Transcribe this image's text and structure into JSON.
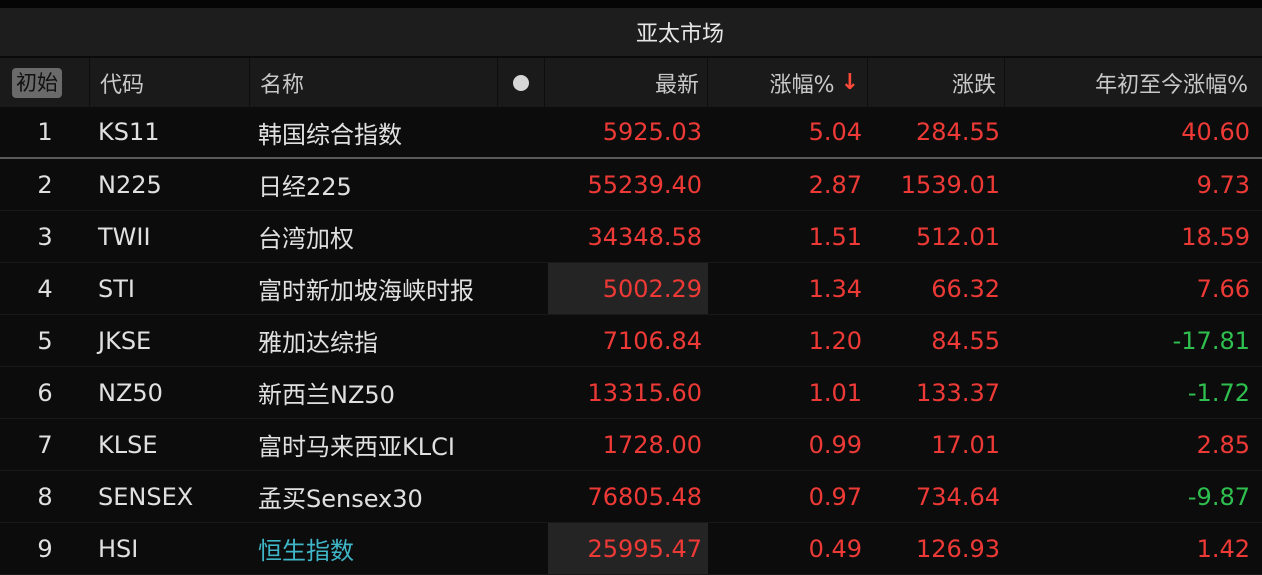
{
  "title": "亚太市场",
  "header": {
    "reset_label": "初始",
    "code": "代码",
    "name": "名称",
    "latest": "最新",
    "pct": "涨幅%",
    "sort_icon": "arrow-down-icon",
    "sort_glyph": "↓",
    "change": "涨跌",
    "ytd": "年初至今涨幅%"
  },
  "colors": {
    "up": "#ee3a36",
    "down": "#2fbf4f",
    "highlight_name": "#3fb6c8"
  },
  "rows": [
    {
      "num": "1",
      "code": "KS11",
      "name": "韩国综合指数",
      "latest": "5925.03",
      "pct": "5.04",
      "change": "284.55",
      "ytd": "40.60"
    },
    {
      "num": "2",
      "code": "N225",
      "name": "日经225",
      "latest": "55239.40",
      "pct": "2.87",
      "change": "1539.01",
      "ytd": "9.73"
    },
    {
      "num": "3",
      "code": "TWII",
      "name": "台湾加权",
      "latest": "34348.58",
      "pct": "1.51",
      "change": "512.01",
      "ytd": "18.59"
    },
    {
      "num": "4",
      "code": "STI",
      "name": "富时新加坡海峡时报",
      "latest": "5002.29",
      "pct": "1.34",
      "change": "66.32",
      "ytd": "7.66"
    },
    {
      "num": "5",
      "code": "JKSE",
      "name": "雅加达综指",
      "latest": "7106.84",
      "pct": "1.20",
      "change": "84.55",
      "ytd": "-17.81"
    },
    {
      "num": "6",
      "code": "NZ50",
      "name": "新西兰NZ50",
      "latest": "13315.60",
      "pct": "1.01",
      "change": "133.37",
      "ytd": "-1.72"
    },
    {
      "num": "7",
      "code": "KLSE",
      "name": "富时马来西亚KLCI",
      "latest": "1728.00",
      "pct": "0.99",
      "change": "17.01",
      "ytd": "2.85"
    },
    {
      "num": "8",
      "code": "SENSEX",
      "name": "孟买Sensex30",
      "latest": "76805.48",
      "pct": "0.97",
      "change": "734.64",
      "ytd": "-9.87"
    },
    {
      "num": "9",
      "code": "HSI",
      "name": "恒生指数",
      "latest": "25995.47",
      "pct": "0.49",
      "change": "126.93",
      "ytd": "1.42"
    }
  ]
}
